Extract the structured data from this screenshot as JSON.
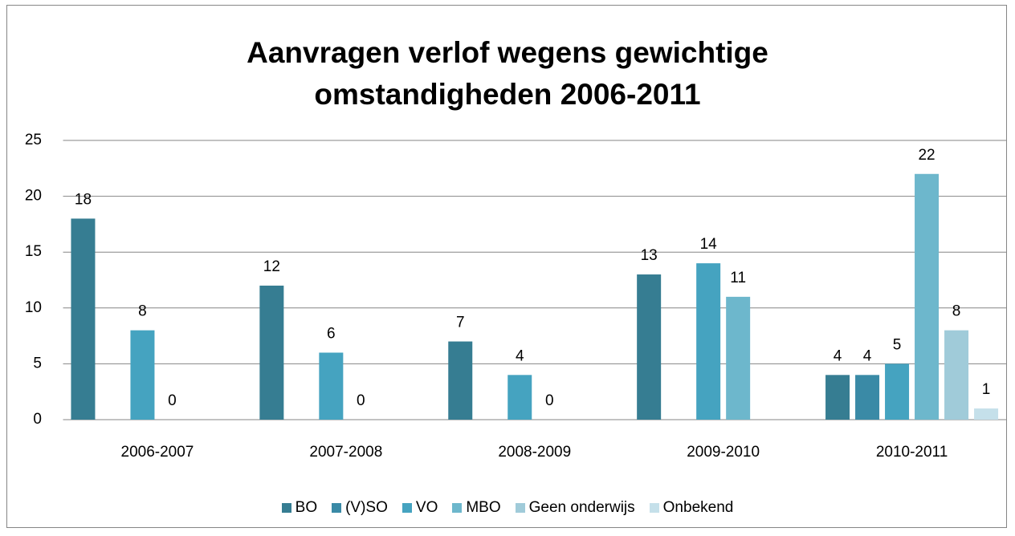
{
  "chart_data": {
    "type": "bar",
    "title": "Aanvragen verlof wegens gewichtige omstandigheden 2006-2011",
    "categories": [
      "2006-2007",
      "2007-2008",
      "2008-2009",
      "2009-2010",
      "2010-2011"
    ],
    "series": [
      {
        "name": "BO",
        "color": "#367d92",
        "values": [
          18,
          12,
          7,
          13,
          4
        ]
      },
      {
        "name": "(V)SO",
        "color": "#3a8aa6",
        "values": [
          null,
          null,
          null,
          null,
          4
        ]
      },
      {
        "name": "VO",
        "color": "#45a3c0",
        "values": [
          8,
          6,
          4,
          14,
          5
        ]
      },
      {
        "name": "MBO",
        "color": "#6db7cc",
        "values": [
          0,
          0,
          0,
          11,
          22
        ]
      },
      {
        "name": "Geen onderwijs",
        "color": "#a0cbd9",
        "values": [
          null,
          null,
          null,
          null,
          8
        ]
      },
      {
        "name": "Onbekend",
        "color": "#c5e0ea",
        "values": [
          null,
          null,
          null,
          null,
          1
        ]
      }
    ],
    "ylim": [
      0,
      25
    ],
    "yticks": [
      0,
      5,
      10,
      15,
      20,
      25
    ],
    "grid": true,
    "legend": "bottom"
  }
}
